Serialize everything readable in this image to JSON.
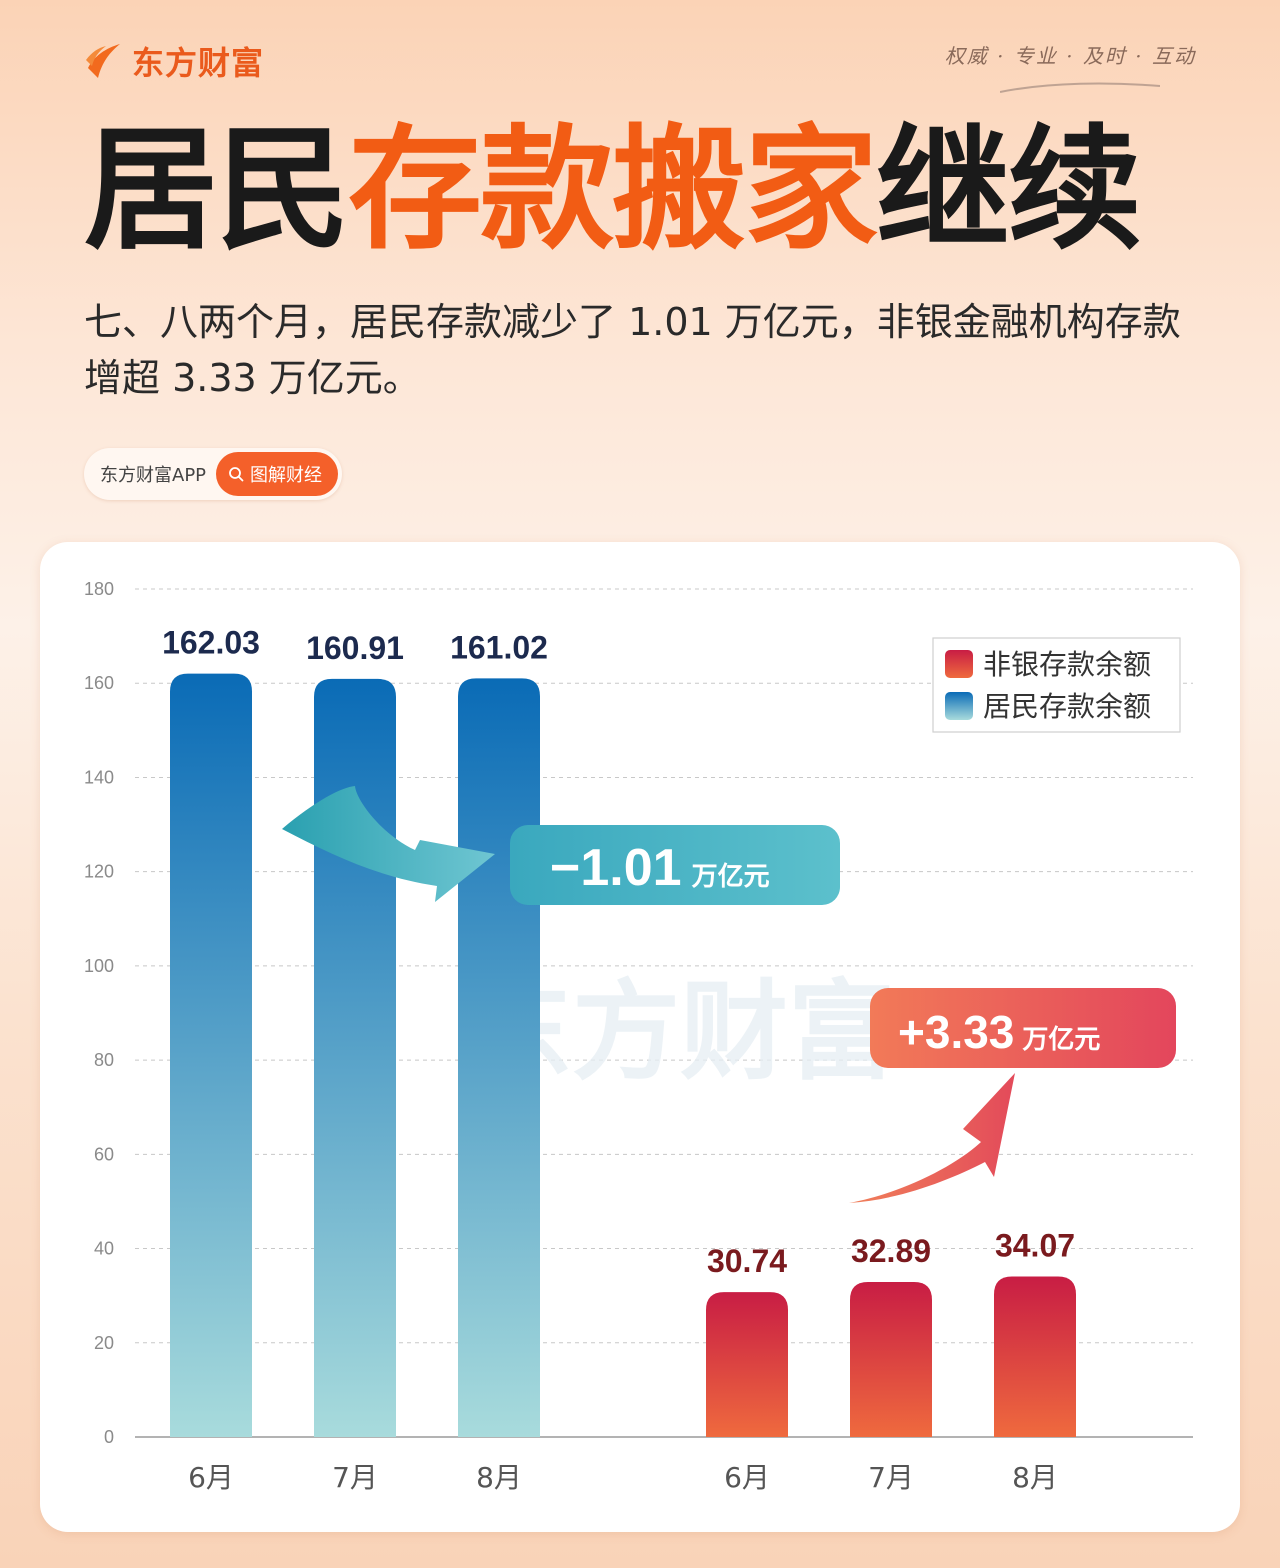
{
  "brand": {
    "name": "东方财富",
    "slogan": "权威 · 专业 · 及时 · 互动"
  },
  "title": {
    "part1": "居民",
    "part2": "存款搬家",
    "part3": "继续"
  },
  "subtitle": "七、八两个月，居民存款减少了 1.01 万亿元，非银金融机构存款增超 3.33 万亿元。",
  "tag": {
    "app": "东方财富APP",
    "button": "图解财经",
    "icon": "search-icon"
  },
  "chart_data": {
    "type": "bar",
    "ylim": [
      0,
      180
    ],
    "yticks": [
      0,
      20,
      40,
      60,
      80,
      100,
      120,
      140,
      160,
      180
    ],
    "grid": true,
    "legend_position": "top-right",
    "watermark": "东方财富",
    "series": [
      {
        "name": "居民存款余额",
        "categories": [
          "6月",
          "7月",
          "8月"
        ],
        "values": [
          162.03,
          160.91,
          161.02
        ],
        "labels": [
          "162.03",
          "160.91",
          "161.02"
        ],
        "color_top": "#0a6bb6",
        "color_bottom": "#a8dbdc",
        "label_color": "#1c2a4e"
      },
      {
        "name": "非银存款余额",
        "categories": [
          "6月",
          "7月",
          "8月"
        ],
        "values": [
          30.74,
          32.89,
          34.07
        ],
        "labels": [
          "30.74",
          "32.89",
          "34.07"
        ],
        "color_top": "#c81d44",
        "color_bottom": "#ef6a3e",
        "label_color": "#7a1a1e"
      }
    ],
    "annotations": [
      {
        "value": "−1.01",
        "unit": "万亿元",
        "series": "居民存款余额"
      },
      {
        "value": "+3.33",
        "unit": "万亿元",
        "series": "非银存款余额"
      }
    ]
  }
}
